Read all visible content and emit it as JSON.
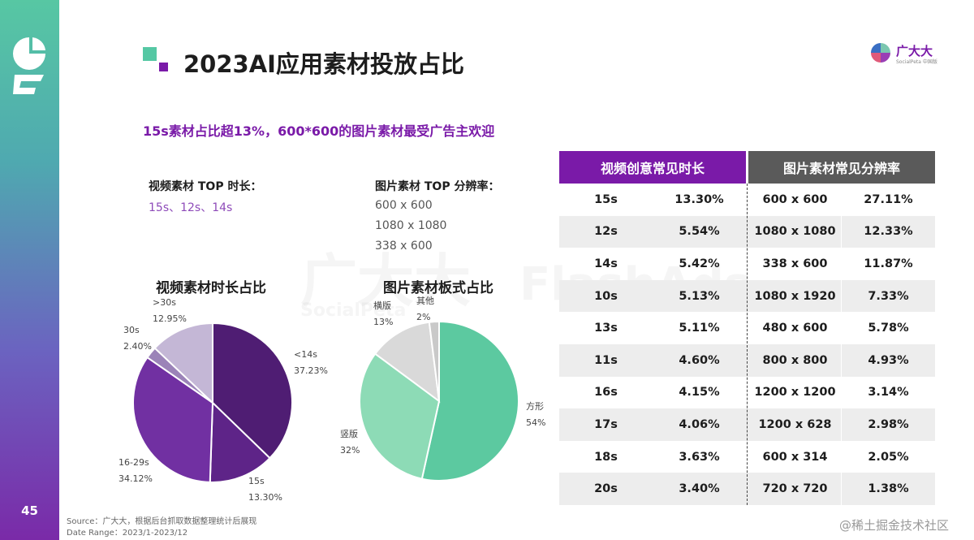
{
  "page": {
    "title": "2023AI应用素材投放占比",
    "page_number": "45",
    "headline": "15s素材占比超13%，600*600的图片素材最受广告主欢迎",
    "brand": {
      "name": "广大大",
      "sub": "SocialPeta 中国版"
    },
    "watermark": {
      "brand": "广大大",
      "sub": "SocialPeta",
      "logo_text": "FlashAds"
    },
    "video_top": {
      "label": "视频素材 TOP 时长：",
      "value": "15s、12s、14s"
    },
    "image_top": {
      "label": "图片素材 TOP 分辨率：",
      "items": [
        "600 x 600",
        "1080 x 1080",
        "338 x 600"
      ]
    },
    "source_line1": "Source：广大大，根据后台抓取数据整理统计后展现",
    "source_line2": "Date Range：2023/1-2023/12",
    "corner_mark": "@稀土掘金技术社区"
  },
  "chart_data": [
    {
      "type": "pie",
      "title": "视频素材时长占比",
      "labels": [
        "<14s",
        "15s",
        "16-29s",
        "30s",
        ">30s"
      ],
      "values": [
        37.23,
        13.3,
        34.12,
        2.4,
        12.95
      ],
      "value_labels": [
        "37.23%",
        "13.30%",
        "34.12%",
        "2.40%",
        "12.95%"
      ],
      "colors": [
        "#4f1d73",
        "#5e2488",
        "#7130a2",
        "#9b83b8",
        "#c4b7d6"
      ]
    },
    {
      "type": "pie",
      "title": "图片素材板式占比",
      "labels": [
        "方形",
        "竖版",
        "横版",
        "其他"
      ],
      "values": [
        54,
        32,
        13,
        2
      ],
      "value_labels": [
        "54%",
        "32%",
        "13%",
        "2%"
      ],
      "colors": [
        "#5cc9a0",
        "#8ddbb6",
        "#d9d9d9",
        "#c9c9c9"
      ]
    },
    {
      "type": "table",
      "headers": [
        "视频创意常见时长",
        "图片素材常见分辨率"
      ],
      "rows": [
        [
          "15s",
          "13.30%",
          "600 x 600",
          "27.11%"
        ],
        [
          "12s",
          "5.54%",
          "1080 x 1080",
          "12.33%"
        ],
        [
          "14s",
          "5.42%",
          "338 x 600",
          "11.87%"
        ],
        [
          "10s",
          "5.13%",
          "1080 x 1920",
          "7.33%"
        ],
        [
          "13s",
          "5.11%",
          "480 x 600",
          "5.78%"
        ],
        [
          "11s",
          "4.60%",
          "800 x 800",
          "4.93%"
        ],
        [
          "16s",
          "4.15%",
          "1200 x 1200",
          "3.14%"
        ],
        [
          "17s",
          "4.06%",
          "1200 x 628",
          "2.98%"
        ],
        [
          "18s",
          "3.63%",
          "600 x 314",
          "2.05%"
        ],
        [
          "20s",
          "3.40%",
          "720 x 720",
          "1.38%"
        ]
      ]
    }
  ]
}
